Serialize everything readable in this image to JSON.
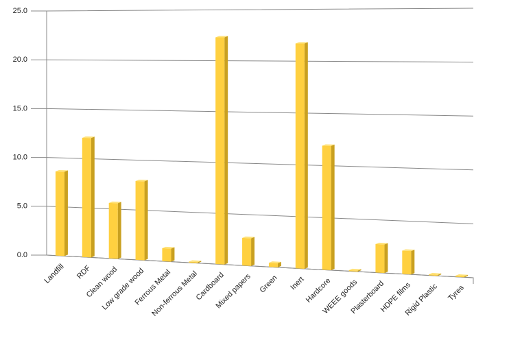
{
  "chart_data": {
    "type": "bar3d",
    "categories": [
      "Landfill",
      "RDF",
      "Clean wood",
      "Low grade wood",
      "Ferrous Metal",
      "Non-ferrous Metal",
      "Cardboard",
      "Mixed papers",
      "Green",
      "Inert",
      "Hardcore",
      "WEEE goods",
      "Plasterboard",
      "HDPE films",
      "Rigid Plastic",
      "Tyres"
    ],
    "values": [
      8.6,
      12.1,
      5.6,
      7.9,
      1.3,
      0.1,
      22.3,
      2.7,
      0.4,
      21.7,
      11.9,
      0.1,
      2.7,
      2.2,
      0.1,
      0.1
    ],
    "color": "#ffd040",
    "ylim": [
      0,
      25
    ],
    "yticks": [
      {
        "value": 0,
        "label": "0.0"
      },
      {
        "value": 5,
        "label": "5.0"
      },
      {
        "value": 10,
        "label": "10.0"
      },
      {
        "value": 15,
        "label": "15.0"
      },
      {
        "value": 20,
        "label": "20.0"
      },
      {
        "value": 25,
        "label": "25.0"
      }
    ],
    "grid": true
  }
}
